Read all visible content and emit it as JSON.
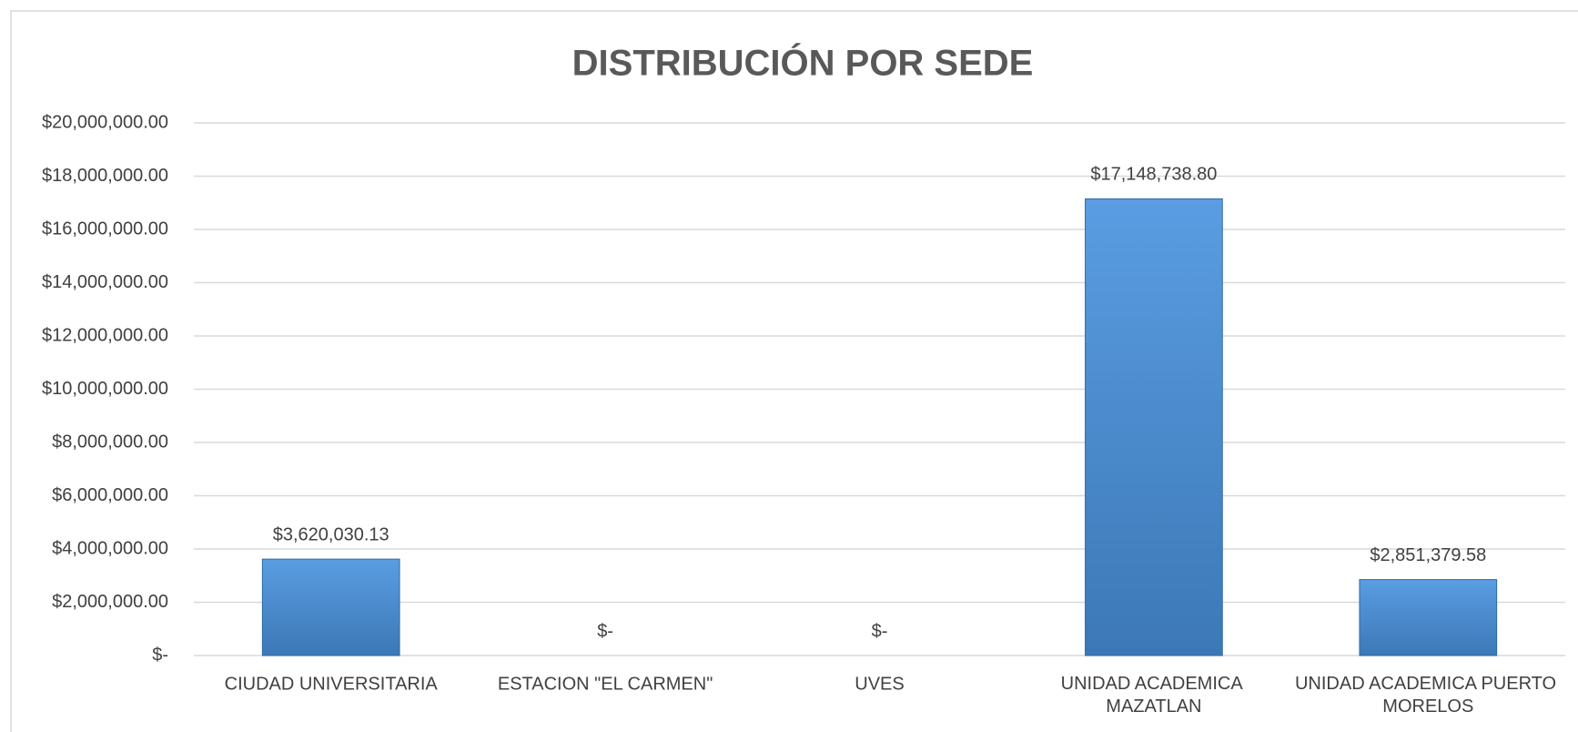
{
  "chart_data": {
    "type": "bar",
    "title": "DISTRIBUCIÓN POR SEDE",
    "categories": [
      "CIUDAD UNIVERSITARIA",
      "ESTACION \"EL CARMEN\"",
      "UVES",
      "UNIDAD ACADEMICA MAZATLAN",
      "UNIDAD ACADEMICA PUERTO MORELOS"
    ],
    "values": [
      3620030.13,
      0,
      0,
      17148738.8,
      2851379.58
    ],
    "value_labels": [
      "$3,620,030.13",
      "$-",
      "$-",
      "$17,148,738.80",
      "$2,851,379.58"
    ],
    "color": "#4a90d9",
    "ylim": [
      0,
      20000000
    ],
    "yticks": [
      {
        "value": 0,
        "label": "$-"
      },
      {
        "value": 2000000,
        "label": "$2,000,000.00"
      },
      {
        "value": 4000000,
        "label": "$4,000,000.00"
      },
      {
        "value": 6000000,
        "label": "$6,000,000.00"
      },
      {
        "value": 8000000,
        "label": "$8,000,000.00"
      },
      {
        "value": 10000000,
        "label": "$10,000,000.00"
      },
      {
        "value": 12000000,
        "label": "$12,000,000.00"
      },
      {
        "value": 14000000,
        "label": "$14,000,000.00"
      },
      {
        "value": 16000000,
        "label": "$16,000,000.00"
      },
      {
        "value": 18000000,
        "label": "$18,000,000.00"
      },
      {
        "value": 20000000,
        "label": "$20,000,000.00"
      }
    ],
    "grid": true
  }
}
